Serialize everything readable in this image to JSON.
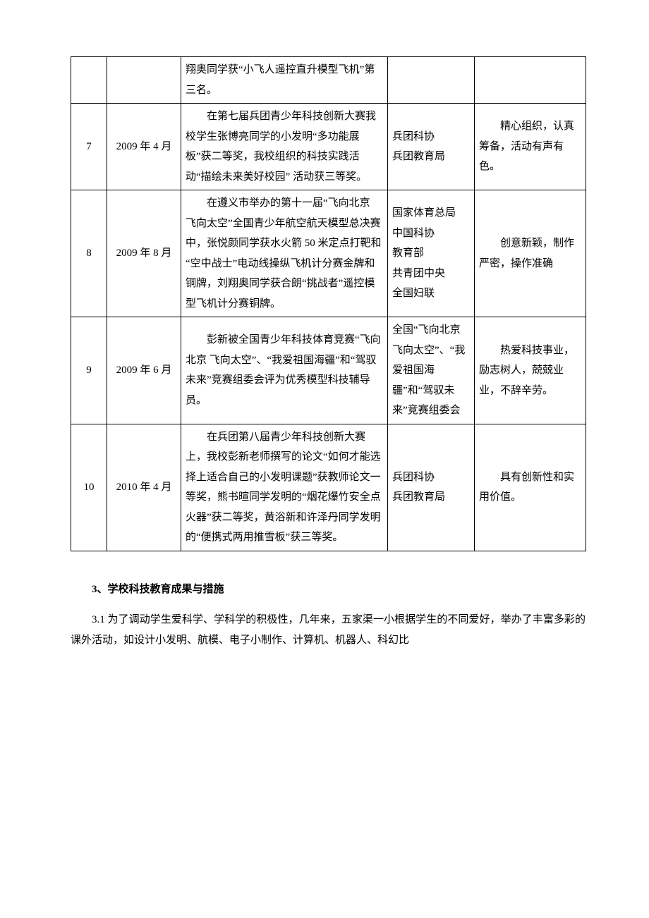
{
  "table": {
    "rows": [
      {
        "num": "",
        "date": "",
        "desc": "翔奥同学获“小飞人遥控直升模型飞机”第三名。",
        "org": "",
        "note": ""
      },
      {
        "num": "7",
        "date": "2009 年 4 月",
        "desc": "在第七届兵团青少年科技创新大赛我校学生张博亮同学的小发明“多功能展板”获二等奖，我校组织的科技实践活动“描绘未来美好校园” 活动获三等奖。",
        "org": "兵团科协\n兵团教育局",
        "note": "精心组织，认真筹备，活动有声有色。"
      },
      {
        "num": "8",
        "date": "2009 年 8 月",
        "desc": "在遵义市举办的第十一届“飞向北京 飞向太空”全国青少年航空航天模型总决赛中，张悦颜同学获水火箭 50 米定点打靶和 “空中战士”电动线操纵飞机计分赛金牌和铜牌，刘翔奥同学获合朗“挑战者”遥控模型飞机计分赛铜牌。",
        "org": "国家体育总局\n中国科协\n教育部\n共青团中央\n全国妇联",
        "note": "创意新颖，制作严密，操作准确"
      },
      {
        "num": "9",
        "date": "2009 年 6 月",
        "desc": "彭新被全国青少年科技体育竞赛“飞向北京 飞向太空”、“我爱祖国海疆”和“驾驭未来”竞赛组委会评为优秀模型科技辅导员。",
        "org": "全国“飞向北京 飞向太空”、“我爱祖国海疆”和“驾驭未来”竞赛组委会",
        "note": "热爱科技事业，励志树人，兢兢业业，不辞辛劳。"
      },
      {
        "num": "10",
        "date": "2010 年 4 月",
        "desc": "在兵团第八届青少年科技创新大赛上，我校彭新老师撰写的论文“如何才能选择上适合自己的小发明课题”获教师论文一等奖，熊书暄同学发明的“烟花爆竹安全点火器”获二等奖，黄浴新和许泽丹同学发明的“便携式两用推雪板”获三等奖。",
        "org": "兵团科协\n兵团教育局",
        "note": "具有创新性和实用价值。"
      }
    ]
  },
  "heading": "3、学校科技教育成果与措施",
  "paragraph": "3.1 为了调动学生爱科学、学科学的积极性，几年来，五家渠一小根据学生的不同爱好，举办了丰富多彩的课外活动，如设计小发明、航模、电子小制作、计算机、机器人、科幻比"
}
